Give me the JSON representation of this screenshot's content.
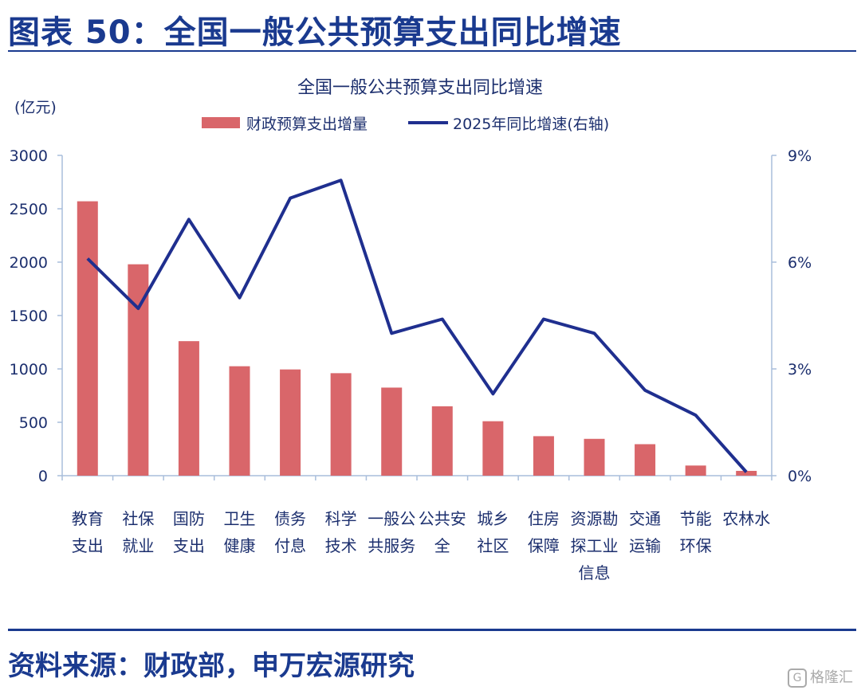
{
  "figure_title": "图表 50：全国一般公共预算支出同比增速",
  "source_note": "资料来源：财政部，申万宏源研究",
  "watermark": "格隆汇",
  "colors": {
    "bar": "#d9666a",
    "line": "#1f2f8f",
    "axis": "#a9bedb",
    "text": "#1c2f6e",
    "brand": "#1a3a8f"
  },
  "chart_data": {
    "type": "bar",
    "title": "全国一般公共预算支出同比增速",
    "ylabel": "(亿元)",
    "ylim": [
      0,
      3000
    ],
    "yticks": [
      "0",
      "500",
      "1000",
      "1500",
      "2000",
      "2500",
      "3000"
    ],
    "y2lim": [
      0,
      9
    ],
    "y2ticks": [
      "0%",
      "3%",
      "6%",
      "9%"
    ],
    "legend": [
      "财政预算支出增量",
      "2025年同比增速(右轴)"
    ],
    "legend_position": "top",
    "grid": false,
    "categories": [
      [
        "教育",
        "支出"
      ],
      [
        "社保",
        "就业"
      ],
      [
        "国防",
        "支出"
      ],
      [
        "卫生",
        "健康"
      ],
      [
        "债务",
        "付息"
      ],
      [
        "科学",
        "技术"
      ],
      [
        "一般公",
        "共服务"
      ],
      [
        "公共安",
        "全"
      ],
      [
        "城乡",
        "社区"
      ],
      [
        "住房",
        "保障"
      ],
      [
        "资源勘",
        "探工业",
        "信息"
      ],
      [
        "交通",
        "运输"
      ],
      [
        "节能",
        "环保"
      ],
      [
        "农林水"
      ]
    ],
    "series": [
      {
        "name": "财政预算支出增量",
        "type": "bar",
        "axis": "left",
        "values": [
          2570,
          1980,
          1260,
          1025,
          995,
          960,
          825,
          650,
          510,
          370,
          345,
          295,
          95,
          45
        ]
      },
      {
        "name": "2025年同比增速(右轴)",
        "type": "line",
        "axis": "right",
        "values": [
          6.1,
          4.7,
          7.2,
          5.0,
          7.8,
          8.3,
          4.0,
          4.4,
          2.3,
          4.4,
          4.0,
          2.4,
          1.7,
          0.1
        ]
      }
    ]
  }
}
